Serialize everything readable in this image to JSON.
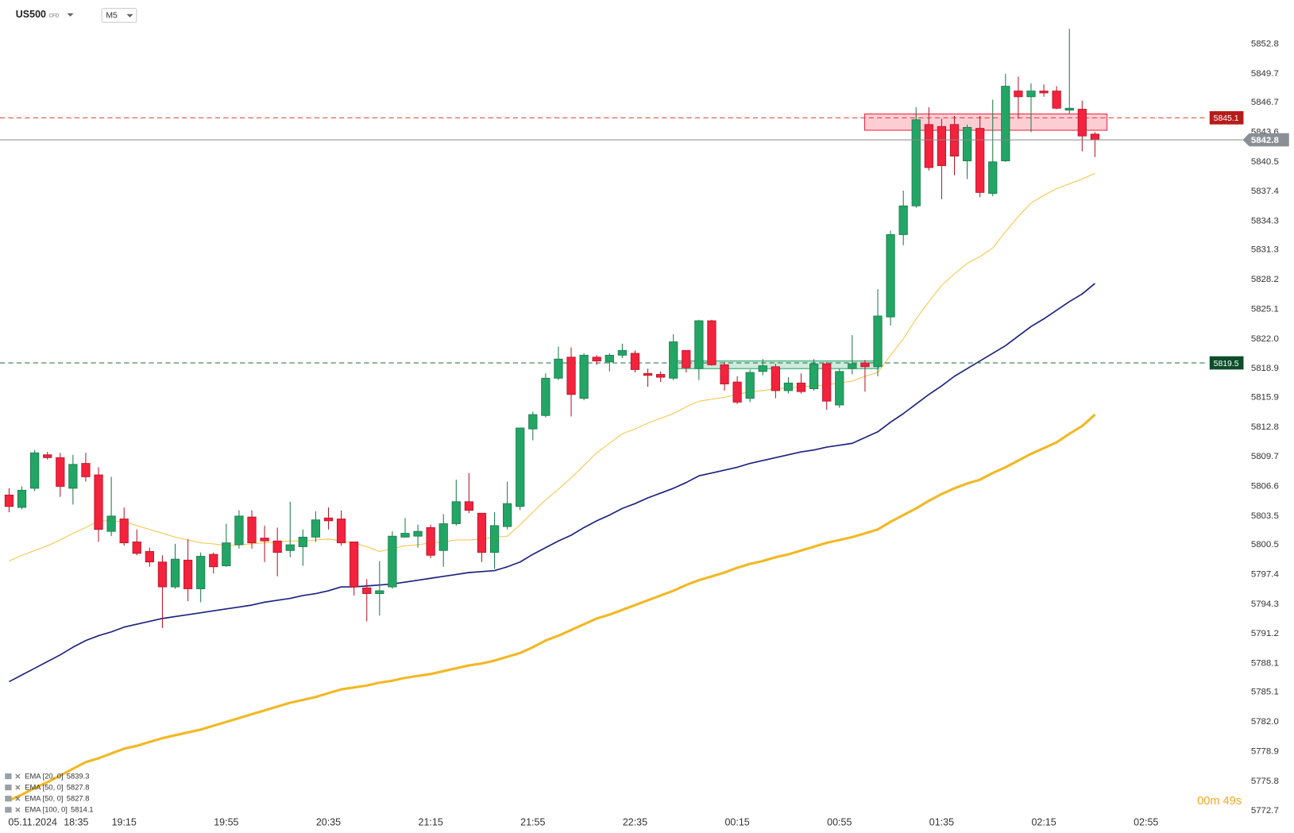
{
  "chart_data": {
    "type": "candlestick",
    "symbol": "US500",
    "instrument_type": "CFD",
    "timeframe": "M5",
    "date": "05.11.2024",
    "timer": "00m 49s",
    "categories": [
      null,
      "18:35",
      null,
      null,
      null,
      null,
      null,
      null,
      null,
      "19:15",
      null,
      null,
      null,
      null,
      null,
      null,
      null,
      "19:55",
      null,
      null,
      null,
      null,
      null,
      null,
      null,
      "20:35",
      null,
      null,
      null,
      null,
      null,
      null,
      null,
      "21:15",
      null,
      null,
      null,
      null,
      null,
      null,
      null,
      "21:55",
      null,
      null,
      null,
      null,
      null,
      null,
      null,
      "22:35",
      null,
      null,
      null,
      null,
      null,
      null,
      null,
      "00:15",
      null,
      null,
      null,
      null,
      null,
      null,
      null,
      "00:55",
      null,
      null,
      null,
      null,
      null,
      null,
      null,
      "01:35",
      null,
      null,
      null,
      null,
      null,
      null,
      null,
      "02:15",
      null,
      null,
      null,
      null,
      null,
      null,
      null,
      "02:55"
    ],
    "open": [
      5805.7,
      5804.4,
      5806.4,
      5809.9,
      5809.6,
      5806.4,
      5809.0,
      5807.8,
      5801.9,
      5803.2,
      5800.8,
      5799.8,
      5798.7,
      5796.1,
      5798.9,
      5795.9,
      5799.5,
      5798.3,
      5800.5,
      5803.4,
      5801.2,
      5800.9,
      5799.9,
      5800.3,
      5801.3,
      5803.3,
      5803.2,
      5800.8,
      5796.0,
      5795.4,
      5796.1,
      5801.3,
      5801.4,
      5802.3,
      5799.9,
      5802.7,
      5805.0,
      5803.8,
      5799.7,
      5802.4,
      5804.5,
      5812.6,
      5814.0,
      5817.9,
      5820.1,
      5815.8,
      5820.1,
      5819.6,
      5820.3,
      5820.5,
      5818.4,
      5818.3,
      5817.9,
      5820.8,
      5818.9,
      5823.9,
      5819.3,
      5817.5,
      5815.8,
      5818.6,
      5819.1,
      5816.6,
      5817.4,
      5816.8,
      5819.4,
      5815.1,
      5818.9,
      5819.5,
      5819.1,
      5824.3,
      5832.9,
      5835.9,
      5844.4,
      5844.2,
      5844.4,
      5840.6,
      5844.0,
      5837.2,
      5840.6,
      5847.9,
      5847.3,
      5847.9,
      5847.9,
      5845.9,
      5846.0,
      5843.4,
      null,
      null,
      null,
      null
    ],
    "high": [
      5806.4,
      5806.6,
      5810.4,
      5810.2,
      5810.1,
      5809.9,
      5810.1,
      5808.6,
      5807.6,
      5804.4,
      5802.1,
      5800.2,
      5799.4,
      5800.6,
      5801.1,
      5799.7,
      5799.7,
      5802.7,
      5804.1,
      5804.1,
      5802.5,
      5802.3,
      5805.0,
      5802.1,
      5804.0,
      5804.4,
      5804.1,
      5800.8,
      5796.9,
      5798.8,
      5801.9,
      5803.3,
      5802.6,
      5802.6,
      5803.7,
      5807.3,
      5808.0,
      5803.8,
      5803.9,
      5807.1,
      5812.7,
      5814.4,
      5818.4,
      5821.2,
      5821.1,
      5820.5,
      5820.3,
      5820.5,
      5821.5,
      5820.8,
      5818.9,
      5818.6,
      5822.5,
      5820.8,
      5824.0,
      5824.0,
      5819.6,
      5818.1,
      5818.8,
      5819.9,
      5819.4,
      5818.0,
      5818.4,
      5819.9,
      5819.6,
      5818.9,
      5822.4,
      5819.8,
      5827.2,
      5833.3,
      5837.5,
      5846.2,
      5846.2,
      5845.0,
      5845.3,
      5844.4,
      5845.3,
      5847.0,
      5849.7,
      5849.4,
      5848.7,
      5848.6,
      5848.4,
      5854.4,
      5846.9,
      5843.6,
      null,
      null,
      null,
      null
    ],
    "low": [
      5803.9,
      5804.2,
      5806.1,
      5809.4,
      5805.5,
      5804.7,
      5807.1,
      5800.8,
      5801.4,
      5800.4,
      5799.4,
      5798.2,
      5791.8,
      5795.9,
      5794.6,
      5794.5,
      5797.5,
      5798.2,
      5800.1,
      5800.1,
      5798.7,
      5797.2,
      5799.2,
      5798.3,
      5800.8,
      5802.1,
      5800.4,
      5795.2,
      5792.5,
      5793.1,
      5795.9,
      5801.3,
      5800.2,
      5799.1,
      5798.2,
      5802.5,
      5803.8,
      5798.7,
      5798.0,
      5802.1,
      5804.1,
      5811.4,
      5813.8,
      5817.7,
      5813.9,
      5815.6,
      5819.3,
      5818.6,
      5820.0,
      5818.5,
      5817.0,
      5817.5,
      5817.7,
      5818.5,
      5817.7,
      5819.2,
      5816.6,
      5815.2,
      5815.4,
      5818.2,
      5815.8,
      5816.3,
      5816.3,
      5816.6,
      5814.6,
      5814.8,
      5818.3,
      5816.5,
      5818.1,
      5823.4,
      5831.8,
      5835.7,
      5839.6,
      5836.6,
      5839.1,
      5838.7,
      5836.8,
      5836.9,
      5840.5,
      5845.0,
      5843.6,
      5847.3,
      5846.0,
      5845.5,
      5841.6,
      5841.0,
      null,
      null,
      null,
      null
    ],
    "close": [
      5804.5,
      5806.2,
      5810.1,
      5809.6,
      5806.6,
      5808.9,
      5807.6,
      5802.1,
      5803.5,
      5800.7,
      5799.6,
      5798.7,
      5796.1,
      5799.0,
      5795.9,
      5799.3,
      5798.2,
      5800.7,
      5803.5,
      5800.7,
      5800.9,
      5799.7,
      5800.5,
      5801.3,
      5803.1,
      5803.0,
      5800.7,
      5796.1,
      5795.4,
      5795.7,
      5801.4,
      5801.7,
      5801.9,
      5799.4,
      5802.7,
      5805.0,
      5804.1,
      5799.7,
      5802.5,
      5804.8,
      5812.7,
      5814.1,
      5817.9,
      5819.9,
      5816.2,
      5820.3,
      5819.7,
      5820.3,
      5820.8,
      5818.8,
      5818.2,
      5818.0,
      5821.7,
      5819.0,
      5823.9,
      5819.3,
      5817.3,
      5815.4,
      5818.5,
      5819.2,
      5816.6,
      5817.4,
      5816.5,
      5819.4,
      5815.5,
      5818.6,
      5819.4,
      5819.1,
      5824.4,
      5832.9,
      5835.9,
      5844.9,
      5839.9,
      5840.1,
      5841.1,
      5844.1,
      5837.3,
      5840.5,
      5848.4,
      5847.3,
      5847.9,
      5847.7,
      5846.1,
      5846.1,
      5843.2,
      5842.8,
      null,
      null,
      null,
      null
    ],
    "up_color": "#22a565",
    "down_color": "#f3223d",
    "series": [
      {
        "name": "EMA [20, 0]",
        "color": "#f6c445",
        "width": 1,
        "values": [
          5798.8,
          5799.4,
          5799.9,
          5800.4,
          5801.0,
          5801.7,
          5802.3,
          5803.0,
          5803.0,
          5802.9,
          5802.5,
          5802.1,
          5801.7,
          5801.3,
          5801.0,
          5800.7,
          5800.6,
          5800.4,
          5800.5,
          5800.6,
          5800.7,
          5800.8,
          5800.9,
          5800.9,
          5801.0,
          5801.1,
          5800.9,
          5800.7,
          5800.3,
          5799.8,
          5800.1,
          5800.4,
          5800.5,
          5800.7,
          5800.8,
          5801.0,
          5801.0,
          5801.1,
          5801.3,
          5801.4,
          5802.6,
          5803.9,
          5805.2,
          5806.3,
          5807.5,
          5808.8,
          5810.1,
          5811.1,
          5812.1,
          5812.6,
          5813.2,
          5813.7,
          5814.2,
          5814.9,
          5815.5,
          5815.7,
          5815.9,
          5816.2,
          5816.5,
          5816.6,
          5816.8,
          5816.9,
          5817.0,
          5817.1,
          5817.2,
          5817.4,
          5817.6,
          5818.1,
          5818.5,
          5820.3,
          5822.0,
          5824.1,
          5825.9,
          5827.6,
          5828.8,
          5829.9,
          5830.6,
          5831.5,
          5833.2,
          5834.8,
          5836.2,
          5837.0,
          5837.7,
          5838.2,
          5838.7,
          5839.3,
          null,
          null,
          null,
          null
        ]
      },
      {
        "name": "EMA [50, 0]",
        "color": "#1a237e",
        "width": 1.6,
        "values": [
          5786.2,
          5786.9,
          5787.6,
          5788.3,
          5789.0,
          5789.8,
          5790.5,
          5791.0,
          5791.4,
          5791.9,
          5792.2,
          5792.5,
          5792.8,
          5793.0,
          5793.2,
          5793.4,
          5793.6,
          5793.8,
          5794.0,
          5794.2,
          5794.5,
          5794.7,
          5794.9,
          5795.2,
          5795.4,
          5795.7,
          5796.1,
          5796.1,
          5796.2,
          5796.3,
          5796.4,
          5796.6,
          5796.8,
          5797.0,
          5797.2,
          5797.4,
          5797.6,
          5797.7,
          5797.8,
          5798.2,
          5798.7,
          5799.5,
          5800.2,
          5800.9,
          5801.5,
          5802.3,
          5803.0,
          5803.6,
          5804.3,
          5804.8,
          5805.4,
          5805.9,
          5806.4,
          5807.0,
          5807.7,
          5808.0,
          5808.3,
          5808.6,
          5809.0,
          5809.3,
          5809.6,
          5809.9,
          5810.2,
          5810.4,
          5810.7,
          5810.9,
          5811.1,
          5811.7,
          5812.3,
          5813.3,
          5814.2,
          5815.2,
          5816.2,
          5817.1,
          5818.1,
          5818.9,
          5819.7,
          5820.5,
          5821.3,
          5822.3,
          5823.3,
          5824.1,
          5825.0,
          5825.9,
          5826.7,
          5827.8,
          null,
          null,
          null,
          null
        ]
      },
      {
        "name": "EMA [100, 0]",
        "color": "#f2b824",
        "width": 3,
        "values": [
          5773.8,
          5774.4,
          5775.1,
          5775.7,
          5776.4,
          5777.1,
          5777.8,
          5778.2,
          5778.7,
          5779.2,
          5779.5,
          5779.9,
          5780.3,
          5780.6,
          5780.9,
          5781.2,
          5781.6,
          5782.0,
          5782.4,
          5782.8,
          5783.2,
          5783.6,
          5784.0,
          5784.3,
          5784.6,
          5785.0,
          5785.4,
          5785.6,
          5785.8,
          5786.1,
          5786.3,
          5786.6,
          5786.8,
          5787.0,
          5787.3,
          5787.6,
          5787.9,
          5788.1,
          5788.4,
          5788.8,
          5789.2,
          5789.8,
          5790.5,
          5791.0,
          5791.6,
          5792.2,
          5792.8,
          5793.2,
          5793.7,
          5794.2,
          5794.7,
          5795.2,
          5795.7,
          5796.3,
          5796.8,
          5797.2,
          5797.6,
          5798.1,
          5798.5,
          5798.8,
          5799.2,
          5799.5,
          5799.9,
          5800.3,
          5800.7,
          5801.0,
          5801.3,
          5801.7,
          5802.1,
          5802.9,
          5803.6,
          5804.3,
          5805.1,
          5805.8,
          5806.4,
          5806.9,
          5807.3,
          5808.0,
          5808.6,
          5809.3,
          5810.0,
          5810.6,
          5811.2,
          5812.1,
          5812.9,
          5814.1,
          null,
          null,
          null,
          null
        ]
      }
    ],
    "legend": [
      {
        "name": "EMA [20, 0]",
        "value": 5839.3
      },
      {
        "name": "EMA [50, 0]",
        "value": 5827.8
      },
      {
        "name": "EMA [50, 0]",
        "value": 5827.8
      },
      {
        "name": "EMA [100, 0]",
        "value": 5814.1
      }
    ],
    "levels": [
      {
        "value": 5845.1,
        "color": "#e53935",
        "badge": "#b71c1c"
      },
      {
        "value": 5819.5,
        "color": "#1b6b3a",
        "badge": "#0d4d2a"
      }
    ],
    "zones": [
      {
        "low": 5843.8,
        "high": 5845.5,
        "color": "#f3223d"
      },
      {
        "low": 5818.9,
        "high": 5819.7,
        "color": "#22a565"
      }
    ],
    "ylim": [
      5772.3,
      5857.4
    ],
    "yticks": [
      5852.8,
      5849.7,
      5846.7,
      5843.6,
      5840.5,
      5837.4,
      5834.3,
      5831.3,
      5828.2,
      5825.1,
      {
        "value": 5822.0,
        "label": "5822.0"
      },
      5818.9,
      5815.9,
      5812.8,
      5809.7,
      5806.6,
      5803.5,
      5800.5,
      5797.4,
      5794.3,
      5791.2,
      5788.1,
      5785.1,
      {
        "value": 5782.0,
        "label": "5782.0"
      },
      5778.9,
      5775.8,
      5772.7
    ],
    "grid": false
  }
}
